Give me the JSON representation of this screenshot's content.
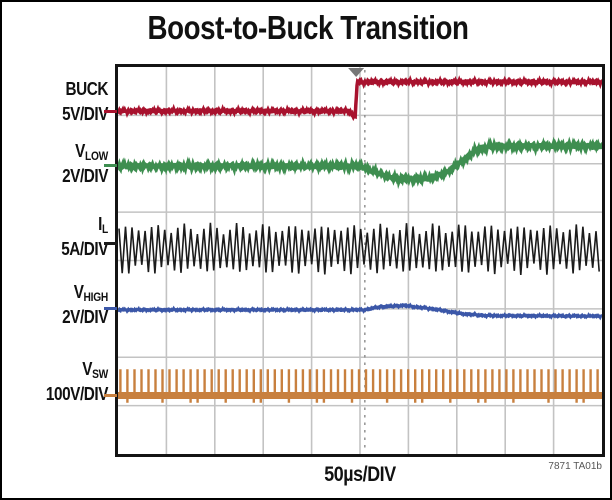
{
  "figure_number": "7871 TA01b",
  "chart_data": {
    "type": "line",
    "subtype": "oscilloscope",
    "title": "Boost-to-Buck Transition",
    "x_axis": {
      "label": "50µs/DIV",
      "divisions": 10
    },
    "y_divisions": 8,
    "grid": {
      "on": true,
      "color": "#c3c3c3",
      "line_width": 1.6
    },
    "cursor": {
      "x_div": 5.1,
      "color": "#8a8a8a"
    },
    "trigger_marker": {
      "x_div": 4.92,
      "color": "#777777"
    },
    "series": [
      {
        "key": "buck",
        "label_main": "BUCK",
        "label_sub": "",
        "scale": "5V/DIV",
        "color": "#a8122e",
        "style": "line-noise",
        "width": 3.5,
        "noise": 0.03,
        "ref_div": 0.91,
        "points_div": [
          [
            0,
            0.91
          ],
          [
            4.8,
            0.91
          ],
          [
            4.85,
            1.02
          ],
          [
            4.9,
            1.02
          ],
          [
            4.94,
            0.31
          ],
          [
            10,
            0.31
          ]
        ]
      },
      {
        "key": "vlow",
        "label_main": "V",
        "label_sub": "LOW",
        "scale": "2V/DIV",
        "color": "#3e8e50",
        "style": "line-noise",
        "width": 4,
        "noise": 0.045,
        "ref_div": 2.04,
        "points_div": [
          [
            0,
            2.05
          ],
          [
            5.0,
            2.05
          ],
          [
            5.2,
            2.12
          ],
          [
            5.5,
            2.25
          ],
          [
            5.8,
            2.31
          ],
          [
            6.4,
            2.31
          ],
          [
            6.8,
            2.18
          ],
          [
            7.1,
            1.95
          ],
          [
            7.4,
            1.72
          ],
          [
            7.7,
            1.64
          ],
          [
            10,
            1.63
          ]
        ]
      },
      {
        "key": "il",
        "label_main": "I",
        "label_sub": "L",
        "scale": "5A/DIV",
        "color": "#1b1b1b",
        "style": "ripple",
        "width": 1.6,
        "ref_div": 3.65,
        "center_div": 3.76,
        "amp_div": 0.42,
        "amp_var_div": 0.08,
        "period_div": 0.135
      },
      {
        "key": "vhigh",
        "label_main": "V",
        "label_sub": "HIGH",
        "scale": "2V/DIV",
        "color": "#3b57a8",
        "style": "line-noise",
        "width": 3,
        "noise": 0.018,
        "ref_div": 5.0,
        "points_div": [
          [
            0,
            5.02
          ],
          [
            5.1,
            5.02
          ],
          [
            5.4,
            4.96
          ],
          [
            5.9,
            4.93
          ],
          [
            6.5,
            5.0
          ],
          [
            7.1,
            5.1
          ],
          [
            7.6,
            5.14
          ],
          [
            10,
            5.15
          ]
        ]
      },
      {
        "key": "vsw",
        "label_main": "V",
        "label_sub": "SW",
        "scale": "100V/DIV",
        "color": "#c8803f",
        "style": "pulse",
        "width": 2.4,
        "ref_div": 6.79,
        "top_div": 6.25,
        "base_div": 6.79,
        "under_div": 6.94,
        "period_div": 0.145
      }
    ]
  }
}
